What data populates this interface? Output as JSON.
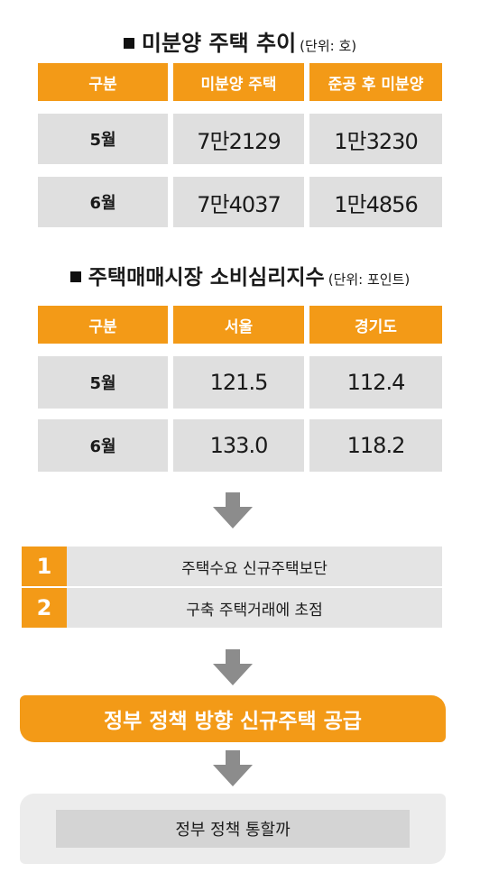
{
  "section1": {
    "title": "미분양 주택 추이",
    "unit": "(단위: 호)",
    "headers": [
      "구분",
      "미분양 주택",
      "준공 후 미분양"
    ],
    "rows": [
      [
        "5월",
        "7만2129",
        "1만3230"
      ],
      [
        "6월",
        "7만4037",
        "1만4856"
      ]
    ]
  },
  "section2": {
    "title": "주택매매시장 소비심리지수",
    "unit": "(단위: 포인트)",
    "headers": [
      "구분",
      "서울",
      "경기도"
    ],
    "rows": [
      [
        "5월",
        "121.5",
        "112.4"
      ],
      [
        "6월",
        "133.0",
        "118.2"
      ]
    ]
  },
  "steps": [
    {
      "num": "1",
      "text": "주택수요 신규주택보단"
    },
    {
      "num": "2",
      "text": "구축 주택거래에 초점"
    }
  ],
  "banner": "정부 정책 방향 신규주택 공급",
  "final": "정부 정책 통할까",
  "colors": {
    "accent": "#f39a17",
    "cell": "#dfdfdf",
    "arrow": "#8c8c8c"
  }
}
